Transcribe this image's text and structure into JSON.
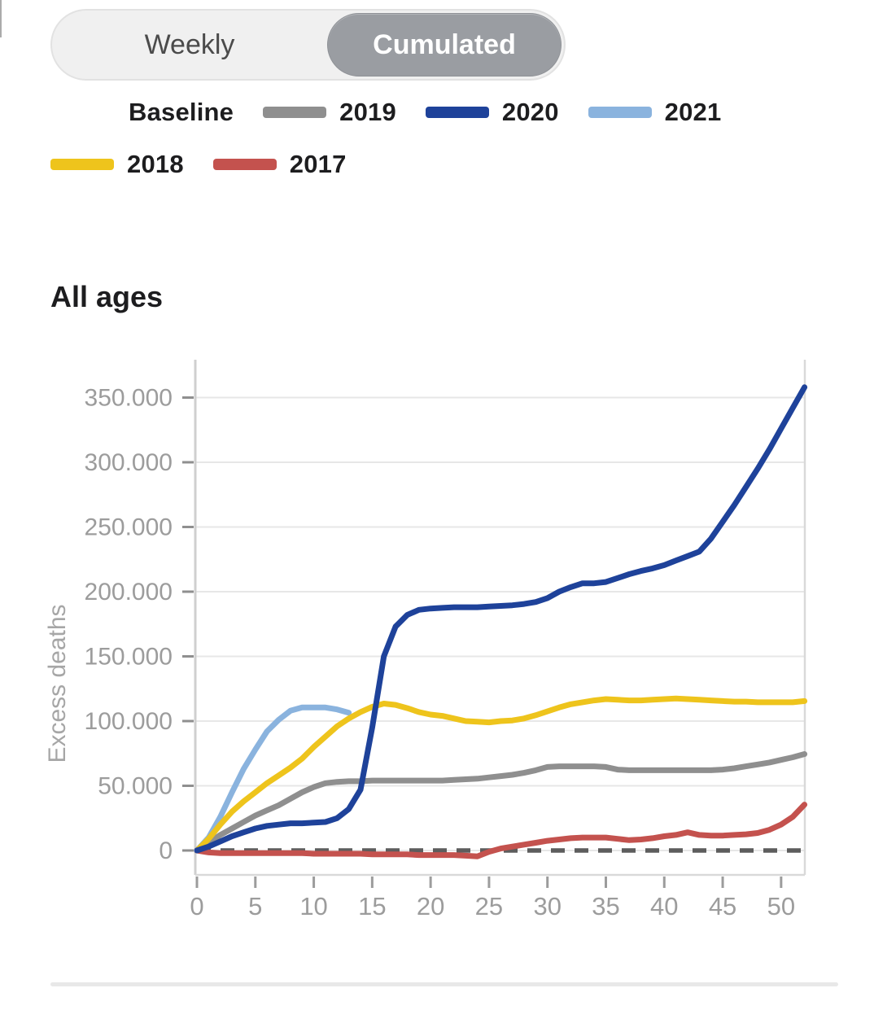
{
  "toggle": {
    "options": [
      {
        "label": "Weekly",
        "selected": false
      },
      {
        "label": "Cumulated",
        "selected": true
      }
    ]
  },
  "legend": {
    "rows": [
      [
        {
          "label": "Baseline",
          "color": "#8a8a8a",
          "style": "dotted"
        },
        {
          "label": "2019",
          "color": "#8f8f8f",
          "style": "solid"
        },
        {
          "label": "2020",
          "color": "#1e429a",
          "style": "solid"
        },
        {
          "label": "2021",
          "color": "#8ab3de",
          "style": "solid"
        }
      ],
      [
        {
          "label": "2018",
          "color": "#eec41c",
          "style": "solid"
        },
        {
          "label": "2017",
          "color": "#c4524e",
          "style": "solid"
        }
      ]
    ]
  },
  "section_title": "All ages",
  "chart_data": {
    "type": "line",
    "title": "All ages",
    "xlabel": "",
    "ylabel": "Excess deaths",
    "x_unit": "week of year",
    "xlim": [
      0,
      52
    ],
    "ylim": [
      -18000,
      378000
    ],
    "grid": true,
    "legend_position": "top",
    "x_ticks": [
      0,
      5,
      10,
      15,
      20,
      25,
      30,
      35,
      40,
      45,
      50
    ],
    "y_ticks": [
      {
        "value": 0,
        "label": "0"
      },
      {
        "value": 50000,
        "label": "50.000"
      },
      {
        "value": 100000,
        "label": "100.000"
      },
      {
        "value": 150000,
        "label": "150.000"
      },
      {
        "value": 200000,
        "label": "200.000"
      },
      {
        "value": 250000,
        "label": "250.000"
      },
      {
        "value": 300000,
        "label": "300.000"
      },
      {
        "value": 350000,
        "label": "350.000"
      }
    ],
    "baseline": {
      "name": "Baseline",
      "type": "hline",
      "value": 0,
      "color": "#5d5d5d",
      "width": 5.5,
      "dash": "17 12"
    },
    "series": [
      {
        "name": "2019",
        "color": "#8f8f8f",
        "width": 7,
        "start_week": 0,
        "values": [
          0,
          6000,
          12000,
          17000,
          22000,
          27000,
          31000,
          35000,
          40000,
          45000,
          49000,
          52000,
          53000,
          53500,
          53500,
          54000,
          54000,
          54000,
          54000,
          54000,
          54000,
          54000,
          54500,
          55000,
          55500,
          56500,
          57500,
          58500,
          60000,
          62000,
          64500,
          65000,
          65000,
          65000,
          65000,
          64500,
          62500,
          62000,
          62000,
          62000,
          62000,
          62000,
          62000,
          62000,
          62000,
          62500,
          63500,
          65000,
          66500,
          68000,
          70000,
          72000,
          74500
        ]
      },
      {
        "name": "2021",
        "color": "#8ab3de",
        "width": 7,
        "start_week": 0,
        "values": [
          0,
          10000,
          26000,
          45000,
          63000,
          78000,
          92000,
          101000,
          108000,
          110500,
          110500,
          110500,
          109000,
          106500
        ]
      },
      {
        "name": "2018",
        "color": "#eec41c",
        "width": 7,
        "start_week": 0,
        "values": [
          0,
          9000,
          20000,
          30000,
          38000,
          45000,
          52000,
          58000,
          64000,
          71000,
          80000,
          88000,
          96000,
          102000,
          107000,
          111000,
          113500,
          112500,
          110000,
          107000,
          105000,
          104000,
          102000,
          100000,
          99500,
          99000,
          100000,
          100500,
          102000,
          104500,
          107500,
          110500,
          113000,
          114500,
          116000,
          117000,
          116500,
          116000,
          116000,
          116500,
          117000,
          117500,
          117000,
          116500,
          116000,
          115500,
          115000,
          115000,
          114500,
          114500,
          114500,
          114500,
          115500
        ]
      },
      {
        "name": "2017",
        "color": "#c4524e",
        "width": 7,
        "start_week": 0,
        "values": [
          0,
          -1500,
          -2000,
          -2000,
          -2000,
          -2000,
          -2000,
          -2000,
          -2000,
          -2000,
          -2500,
          -2500,
          -2500,
          -2500,
          -2500,
          -3000,
          -3000,
          -3000,
          -3000,
          -3500,
          -3500,
          -3500,
          -3500,
          -4000,
          -4500,
          -1000,
          1500,
          3000,
          4500,
          6000,
          7500,
          8500,
          9500,
          10000,
          10000,
          10000,
          9000,
          8000,
          8500,
          9500,
          11000,
          12000,
          14000,
          12000,
          11500,
          11500,
          12000,
          12500,
          13500,
          16000,
          20000,
          26000,
          35500
        ]
      },
      {
        "name": "2020",
        "color": "#1e429a",
        "width": 7,
        "start_week": 0,
        "values": [
          0,
          3000,
          7000,
          11000,
          14000,
          17000,
          19000,
          20000,
          21000,
          21000,
          21500,
          22000,
          25000,
          32000,
          47000,
          95000,
          150000,
          173000,
          182000,
          186000,
          187000,
          187500,
          188000,
          188000,
          188000,
          188500,
          189000,
          189500,
          190500,
          192000,
          195000,
          200000,
          203500,
          206500,
          206500,
          207500,
          210500,
          213500,
          216000,
          218000,
          220500,
          224000,
          227500,
          231000,
          241000,
          254000,
          267000,
          281000,
          295000,
          310000,
          326000,
          342000,
          358000
        ]
      }
    ]
  }
}
